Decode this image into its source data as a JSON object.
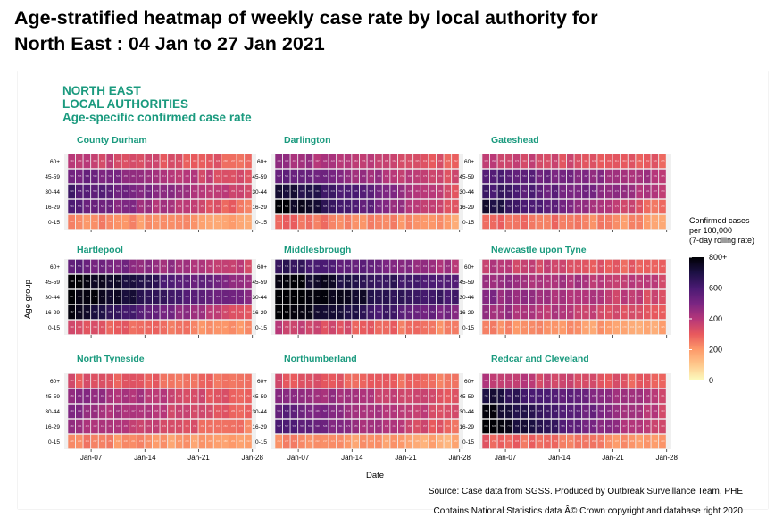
{
  "header": {
    "title_line1": "Age-stratified heatmap of weekly case rate by local authority for",
    "title_line2": "North East : 04 Jan to 27 Jan 2021"
  },
  "figure": {
    "heading_line1": "NORTH EAST",
    "heading_line2": "LOCAL AUTHORITIES",
    "heading_line3": "Age-specific confirmed case rate"
  },
  "footer": {
    "source": "Source: Case data from SGSS. Produced by Outbreak Surveillance Team, PHE",
    "copyright": "Contains National Statistics data Â© Crown copyright and database right 2020"
  },
  "colors": {
    "scale": [
      "#fcfdbf",
      "#fec98d",
      "#fd9a6a",
      "#e8595d",
      "#b5367a",
      "#7a2582",
      "#4a1a73",
      "#1c1044",
      "#000004"
    ],
    "panel_title": "#1a9a7e"
  },
  "chart_data": {
    "type": "heatmap",
    "title": "",
    "xlabel": "Date",
    "ylabel": "Age group",
    "x_ticks": [
      "Jan-07",
      "Jan-14",
      "Jan-21",
      "Jan-28"
    ],
    "x_range": [
      "2021-01-04",
      "2021-01-27"
    ],
    "y_categories": [
      "60+",
      "45-59",
      "30-44",
      "16-29",
      "0-15"
    ],
    "legend": {
      "title_line1": "Confirmed cases",
      "title_line2": "per 100,000",
      "title_line3": "(7-day rolling rate)",
      "ticks": [
        "0",
        "200",
        "400",
        "600",
        "800+"
      ],
      "range": [
        0,
        800
      ],
      "placement": "right"
    },
    "panels": [
      {
        "name": "County Durham",
        "start": [
          380,
          540,
          620,
          580,
          230
        ],
        "end": [
          280,
          310,
          330,
          260,
          190
        ]
      },
      {
        "name": "Darlington",
        "start": [
          460,
          560,
          760,
          820,
          280
        ],
        "end": [
          300,
          330,
          340,
          290,
          190
        ]
      },
      {
        "name": "Gateshead",
        "start": [
          380,
          600,
          640,
          730,
          290
        ],
        "end": [
          290,
          400,
          390,
          260,
          200
        ]
      },
      {
        "name": "Hartlepool",
        "start": [
          560,
          820,
          820,
          780,
          320
        ],
        "end": [
          360,
          440,
          470,
          300,
          200
        ]
      },
      {
        "name": "Middlesbrough",
        "start": [
          660,
          800,
          830,
          820,
          380
        ],
        "end": [
          420,
          560,
          600,
          480,
          220
        ]
      },
      {
        "name": "Newcastle upon Tyne",
        "start": [
          390,
          470,
          480,
          460,
          240
        ],
        "end": [
          270,
          360,
          340,
          300,
          170
        ]
      },
      {
        "name": "North Tyneside",
        "start": [
          320,
          480,
          470,
          460,
          240
        ],
        "end": [
          250,
          290,
          290,
          240,
          170
        ]
      },
      {
        "name": "Northumberland",
        "start": [
          330,
          500,
          560,
          600,
          240
        ],
        "end": [
          250,
          300,
          320,
          280,
          160
        ]
      },
      {
        "name": "Redcar and Cleveland",
        "start": [
          400,
          720,
          780,
          820,
          300
        ],
        "end": [
          280,
          370,
          360,
          320,
          190
        ]
      }
    ]
  }
}
